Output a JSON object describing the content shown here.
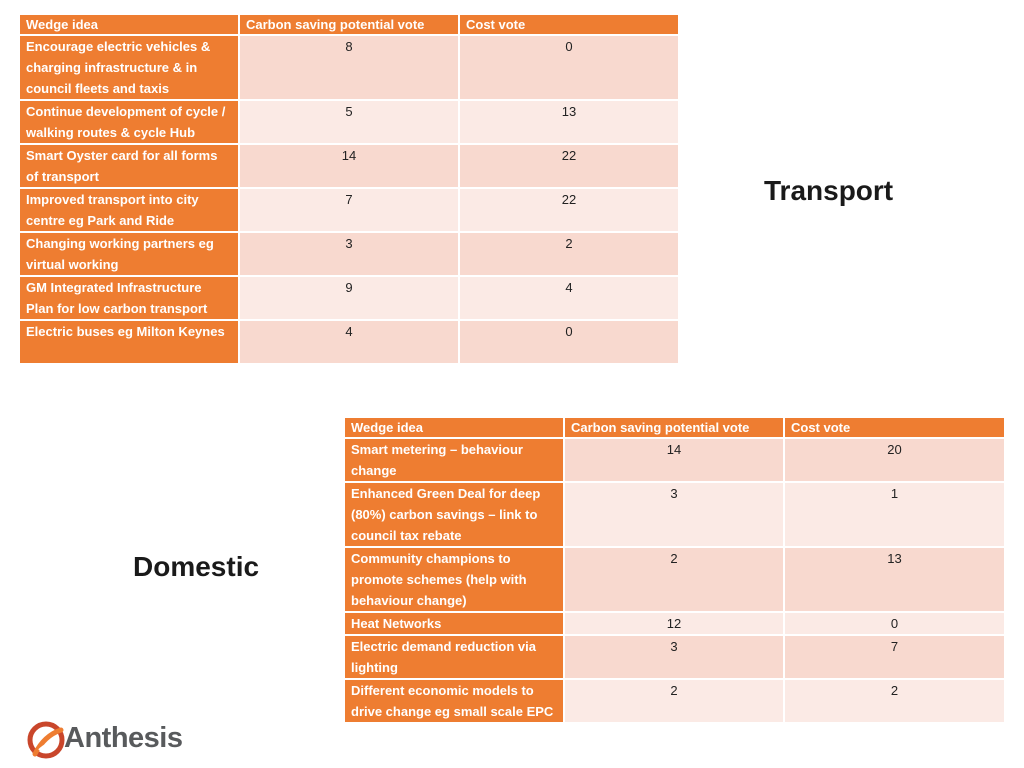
{
  "transport": {
    "title": "Transport",
    "headers": [
      "Wedge idea",
      "Carbon saving potential vote",
      "Cost vote"
    ],
    "rows": [
      {
        "idea": "Encourage electric vehicles & charging infrastructure & in council fleets and taxis",
        "carbon": "8",
        "cost": "0"
      },
      {
        "idea": "Continue development of cycle / walking routes & cycle Hub",
        "carbon": "5",
        "cost": "13"
      },
      {
        "idea": "Smart Oyster card for all forms of transport",
        "carbon": "14",
        "cost": "22"
      },
      {
        "idea": "Improved transport into city centre eg Park and Ride",
        "carbon": "7",
        "cost": "22"
      },
      {
        "idea": "Changing working partners eg virtual working",
        "carbon": "3",
        "cost": "2"
      },
      {
        "idea": "GM Integrated Infrastructure Plan for low carbon transport",
        "carbon": "9",
        "cost": "4"
      },
      {
        "idea": "Electric buses eg Milton Keynes",
        "carbon": "4",
        "cost": "0"
      }
    ]
  },
  "domestic": {
    "title": "Domestic",
    "headers": [
      "Wedge idea",
      "Carbon saving potential vote",
      "Cost vote"
    ],
    "rows": [
      {
        "idea": "Smart metering – behaviour change",
        "carbon": "14",
        "cost": "20"
      },
      {
        "idea": "Enhanced Green Deal for deep (80%) carbon savings – link to council tax rebate",
        "carbon": "3",
        "cost": "1"
      },
      {
        "idea": "Community champions to promote schemes (help with behaviour change)",
        "carbon": "2",
        "cost": "13"
      },
      {
        "idea": "Heat Networks",
        "carbon": "12",
        "cost": "0"
      },
      {
        "idea": "Electric demand reduction via lighting",
        "carbon": "3",
        "cost": "7"
      },
      {
        "idea": "Different economic models to drive change eg small scale EPC",
        "carbon": "2",
        "cost": "2"
      }
    ]
  },
  "logo": {
    "text": "Anthesis",
    "icon": "anthesis-swirl-icon",
    "colors": {
      "ring": "#c9462b",
      "accent": "#ee7d31",
      "text": "#585a5c"
    }
  },
  "colors": {
    "header": "#ee7d31",
    "row_odd": "#f8d9cf",
    "row_even": "#fbeae5"
  }
}
